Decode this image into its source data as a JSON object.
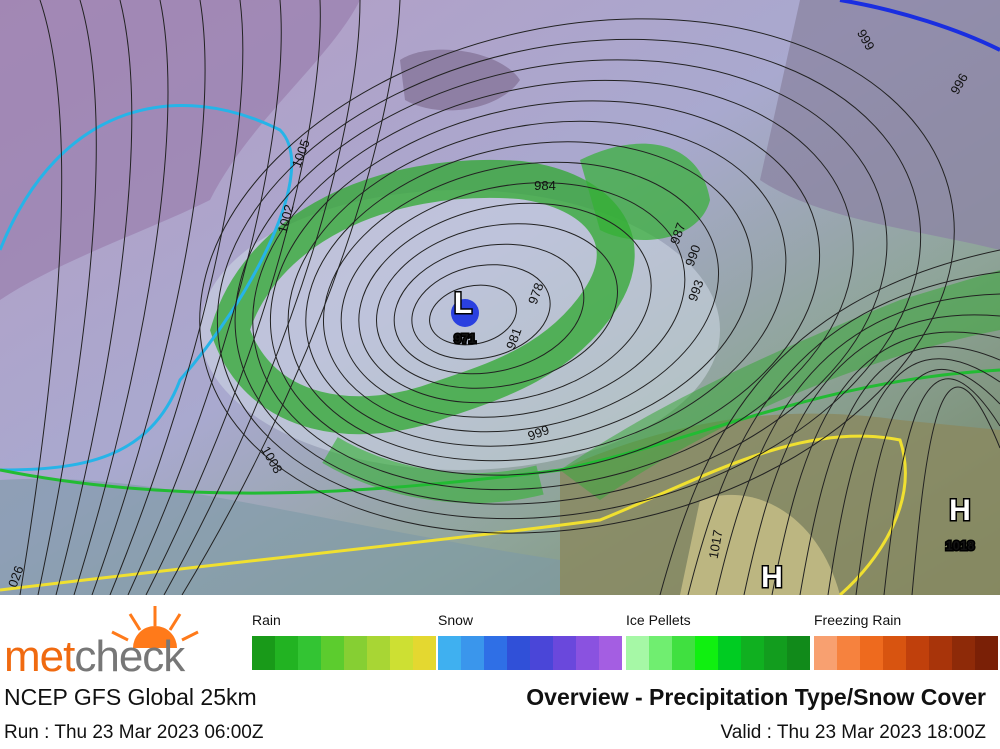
{
  "map": {
    "pressure_labels": [
      "1005",
      "1002",
      "984",
      "987",
      "990",
      "993",
      "978",
      "981",
      "971",
      "999",
      "1008",
      "999",
      "996",
      "1017",
      "1018",
      "026"
    ],
    "centers": [
      "L",
      "H",
      "H"
    ]
  },
  "legend": [
    {
      "name": "Rain",
      "colors": [
        "#199a19",
        "#22b322",
        "#33c433",
        "#5ccc2e",
        "#86cf33",
        "#a8d634",
        "#cde033",
        "#e4d830"
      ]
    },
    {
      "name": "Snow",
      "colors": [
        "#3fb0f0",
        "#3a96ec",
        "#2f6fe6",
        "#3050d8",
        "#4a46d8",
        "#6a48dc",
        "#8a52e0",
        "#a45ee2"
      ]
    },
    {
      "name": "Ice Pellets",
      "colors": [
        "#a6f8a6",
        "#70ee70",
        "#40e040",
        "#10f010",
        "#00cc22",
        "#10b020",
        "#129d1e",
        "#118a1a"
      ]
    },
    {
      "name": "Freezing Rain",
      "colors": [
        "#f8a070",
        "#f6823e",
        "#ee6a1e",
        "#d85410",
        "#c0400c",
        "#a8340a",
        "#8e2a08",
        "#7a2006"
      ]
    }
  ],
  "footer": {
    "brand_left": "met",
    "brand_right": "check",
    "model": "NCEP GFS Global 25km",
    "product": "Overview - Precipitation Type/Snow Cover",
    "run": "Run : Thu 23 Mar 2023 06:00Z",
    "valid": "Valid : Thu 23 Mar 2023 18:00Z"
  }
}
